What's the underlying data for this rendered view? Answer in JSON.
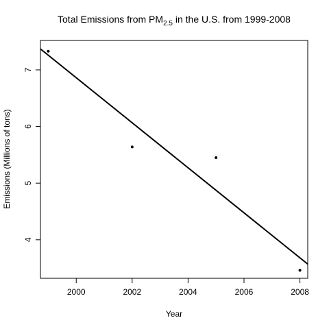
{
  "chart_data": {
    "type": "scatter",
    "title_main": "Total Emissions from PM",
    "title_sub": "2.5",
    "title_rest": " in the U.S. from 1999-2008",
    "xlabel": "Year",
    "ylabel": "Emissions (Millions of tons)",
    "xlim": [
      1998.72,
      2008.28
    ],
    "ylim": [
      3.32,
      7.52
    ],
    "x_ticks": [
      2000,
      2002,
      2004,
      2006,
      2008
    ],
    "y_ticks": [
      4,
      5,
      6,
      7
    ],
    "x_tick_labels": [
      "2000",
      "2002",
      "2004",
      "2006",
      "2008"
    ],
    "y_tick_labels": [
      "4",
      "5",
      "6",
      "7"
    ],
    "points": [
      {
        "x": 1999,
        "y": 7.33
      },
      {
        "x": 2002,
        "y": 5.64
      },
      {
        "x": 2005,
        "y": 5.45
      },
      {
        "x": 2008,
        "y": 3.46
      }
    ],
    "trend_line": {
      "x": [
        1998.72,
        2008.28
      ],
      "y": [
        7.37,
        3.57
      ]
    },
    "grid": false,
    "legend": "none"
  }
}
